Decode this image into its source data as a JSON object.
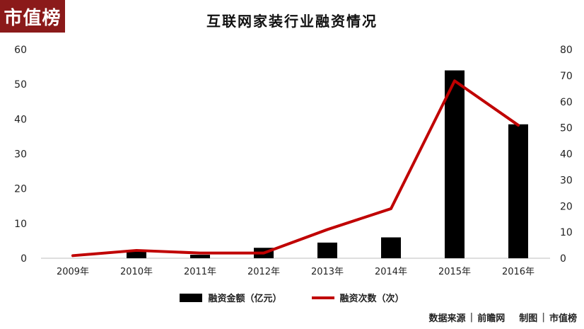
{
  "logo": "市值榜",
  "chart_data": {
    "type": "bar",
    "title": "互联网家装行业融资情况",
    "categories": [
      "2009年",
      "2010年",
      "2011年",
      "2012年",
      "2013年",
      "2014年",
      "2015年",
      "2016年"
    ],
    "series": [
      {
        "name": "融资金额（亿元）",
        "type": "bar",
        "axis": "left",
        "values": [
          0,
          2,
          1,
          3,
          4.5,
          6,
          54,
          38.5
        ],
        "color": "#000000"
      },
      {
        "name": "融资次数（次）",
        "type": "line",
        "axis": "right",
        "values": [
          1,
          3,
          2,
          2,
          11,
          19,
          68,
          51
        ],
        "color": "#c00000"
      }
    ],
    "y_left": {
      "ylim": [
        0,
        60
      ],
      "ticks": [
        "0",
        "10",
        "20",
        "30",
        "40",
        "50",
        "60"
      ]
    },
    "y_right": {
      "ylim": [
        0,
        80
      ],
      "ticks": [
        "0",
        "10",
        "20",
        "30",
        "40",
        "50",
        "60",
        "70",
        "80"
      ]
    },
    "grid": false,
    "legend_position": "bottom"
  },
  "footer": {
    "source_label": "数据来源",
    "source": "前瞻网",
    "made_label": "制图",
    "maker": "市值榜"
  }
}
